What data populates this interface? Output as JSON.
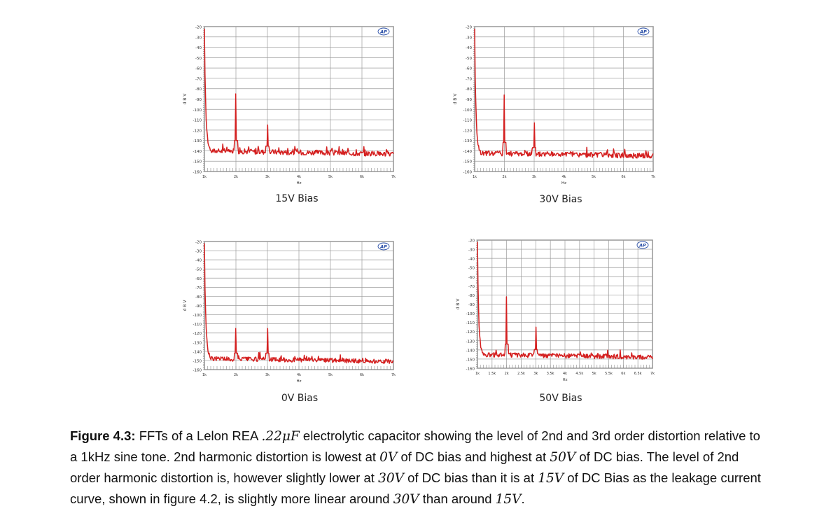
{
  "chart_data": [
    {
      "type": "line",
      "caption": "15V Bias",
      "xlabel": "Hz",
      "ylabel": "d B V",
      "x_ticks": [
        "1k",
        "2k",
        "3k",
        "4k",
        "5k",
        "6k",
        "7k"
      ],
      "y_ticks": [
        "-20",
        "-30",
        "-40",
        "-50",
        "-60",
        "-70",
        "-80",
        "-90",
        "-100",
        "-110",
        "-120",
        "-130",
        "-140",
        "-150",
        "-160"
      ],
      "xlim": [
        1000,
        7000
      ],
      "ylim": [
        -160,
        -20
      ],
      "logo": "AP",
      "series": [
        {
          "color": "#d42020",
          "peaks": [
            {
              "x": 2000,
              "y": -85
            },
            {
              "x": 3000,
              "y": -115
            }
          ],
          "noise_floor": -140
        }
      ]
    },
    {
      "type": "line",
      "caption": "30V Bias",
      "xlabel": "Hz",
      "ylabel": "d B V",
      "x_ticks": [
        "1k",
        "2k",
        "3k",
        "4k",
        "5k",
        "6k",
        "7k"
      ],
      "y_ticks": [
        "-20",
        "-30",
        "-40",
        "-50",
        "-60",
        "-70",
        "-80",
        "-90",
        "-100",
        "-110",
        "-120",
        "-130",
        "-140",
        "-150",
        "-160"
      ],
      "xlim": [
        1000,
        7000
      ],
      "ylim": [
        -160,
        -20
      ],
      "logo": "AP",
      "series": [
        {
          "color": "#d42020",
          "peaks": [
            {
              "x": 2000,
              "y": -86
            },
            {
              "x": 3000,
              "y": -113
            }
          ],
          "noise_floor": -142
        }
      ]
    },
    {
      "type": "line",
      "caption": "0V Bias",
      "xlabel": "Hz",
      "ylabel": "d B V",
      "x_ticks": [
        "1k",
        "2k",
        "3k",
        "4k",
        "5k",
        "6k",
        "7k"
      ],
      "y_ticks": [
        "-20",
        "-30",
        "-40",
        "-50",
        "-60",
        "-70",
        "-80",
        "-90",
        "-100",
        "-110",
        "-120",
        "-130",
        "-140",
        "-150",
        "-160"
      ],
      "xlim": [
        1000,
        7000
      ],
      "ylim": [
        -160,
        -20
      ],
      "logo": "AP",
      "series": [
        {
          "color": "#d42020",
          "peaks": [
            {
              "x": 2000,
              "y": -115
            },
            {
              "x": 3000,
              "y": -115
            }
          ],
          "noise_floor": -148
        }
      ]
    },
    {
      "type": "line",
      "caption": "50V Bias",
      "xlabel": "Hz",
      "ylabel": "d B V",
      "x_ticks": [
        "1k",
        "1.5k",
        "2k",
        "2.5k",
        "3k",
        "3.5k",
        "4k",
        "4.5k",
        "5k",
        "5.5k",
        "6k",
        "6.5k",
        "7k"
      ],
      "y_ticks": [
        "-20",
        "-30",
        "-40",
        "-50",
        "-60",
        "-70",
        "-80",
        "-90",
        "-100",
        "-110",
        "-120",
        "-130",
        "-140",
        "-150",
        "-160"
      ],
      "xlim": [
        1000,
        7000
      ],
      "ylim": [
        -160,
        -20
      ],
      "logo": "AP",
      "series": [
        {
          "color": "#d42020",
          "peaks": [
            {
              "x": 2000,
              "y": -82
            },
            {
              "x": 3000,
              "y": -115
            }
          ],
          "noise_floor": -145
        }
      ]
    }
  ],
  "caption": {
    "label": "Figure 4.3:",
    "t1": " FFTs of a Lelon REA ",
    "m1": ".22μF",
    "t2": " electrolytic capacitor showing the level of 2nd and 3rd order distortion relative to a 1kHz sine tone. 2nd harmonic distortion is lowest at ",
    "m2": "0V",
    "t3": " of DC bias and highest at ",
    "m3": "50V",
    "t4": " of DC bias. The level of 2nd order harmonic distortion is, however slightly lower at ",
    "m4": "30V",
    "t5": " of DC bias than it is at ",
    "m5": "15V",
    "t6": " of DC Bias as the leakage current curve, shown in figure 4.2, is slightly more linear around ",
    "m6": "30V",
    "t7": " than around ",
    "m7": "15V",
    "t8": "."
  }
}
